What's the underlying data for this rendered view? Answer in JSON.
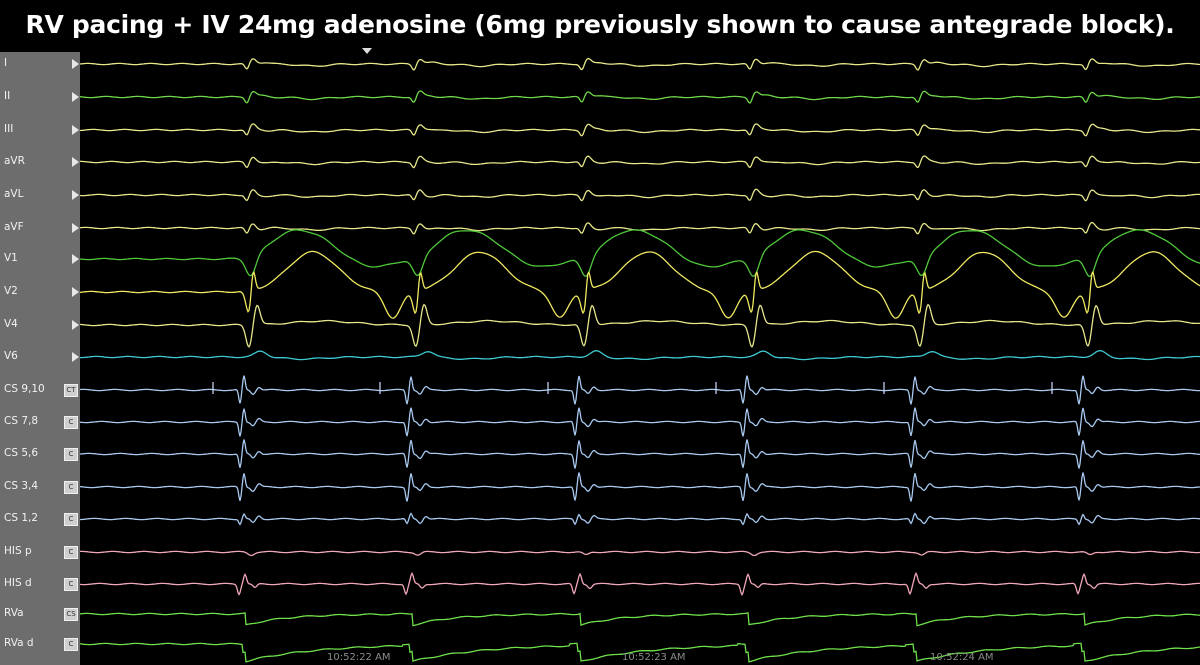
{
  "title": "RV pacing + IV 24mg adenosine (6mg previously shown to cause antegrade block).",
  "channels": [
    {
      "label": "I",
      "color": "#e6e68a",
      "btn": "",
      "type": "surface"
    },
    {
      "label": "II",
      "color": "#6fd84a",
      "btn": "",
      "type": "surface"
    },
    {
      "label": "III",
      "color": "#e6e68a",
      "btn": "",
      "type": "surface"
    },
    {
      "label": "aVR",
      "color": "#e6e68a",
      "btn": "",
      "type": "surface"
    },
    {
      "label": "aVL",
      "color": "#e6e68a",
      "btn": "",
      "type": "surface"
    },
    {
      "label": "aVF",
      "color": "#e6e68a",
      "btn": "",
      "type": "surface"
    },
    {
      "label": "V1",
      "color": "#4fc83a",
      "btn": "",
      "type": "v1"
    },
    {
      "label": "V2",
      "color": "#f0e860",
      "btn": "",
      "type": "v2"
    },
    {
      "label": "V4",
      "color": "#e6e68a",
      "btn": "",
      "type": "v4"
    },
    {
      "label": "V6",
      "color": "#3ec8d0",
      "btn": "",
      "type": "v6"
    },
    {
      "label": "CS 9,10",
      "color": "#a8c8f0",
      "btn": "CT",
      "type": "cs"
    },
    {
      "label": "CS 7,8",
      "color": "#a8c8f0",
      "btn": "C",
      "type": "cs"
    },
    {
      "label": "CS 5,6",
      "color": "#a8c8f0",
      "btn": "C",
      "type": "cs"
    },
    {
      "label": "CS 3,4",
      "color": "#a8c8f0",
      "btn": "C",
      "type": "cs"
    },
    {
      "label": "CS 1,2",
      "color": "#a8c8f0",
      "btn": "C",
      "type": "cs12"
    },
    {
      "label": "HIS p",
      "color": "#f0a8b8",
      "btn": "C",
      "type": "hisp"
    },
    {
      "label": "HIS d",
      "color": "#f0a8b8",
      "btn": "C",
      "type": "hisd"
    },
    {
      "label": "RVa",
      "color": "#6fe04a",
      "btn": "CS",
      "type": "rva"
    },
    {
      "label": "RVa d",
      "color": "#6fe04a",
      "btn": "C",
      "type": "rvad"
    }
  ],
  "timestamps": [
    "10:52:22 AM",
    "10:52:23 AM",
    "10:52:24 AM"
  ]
}
